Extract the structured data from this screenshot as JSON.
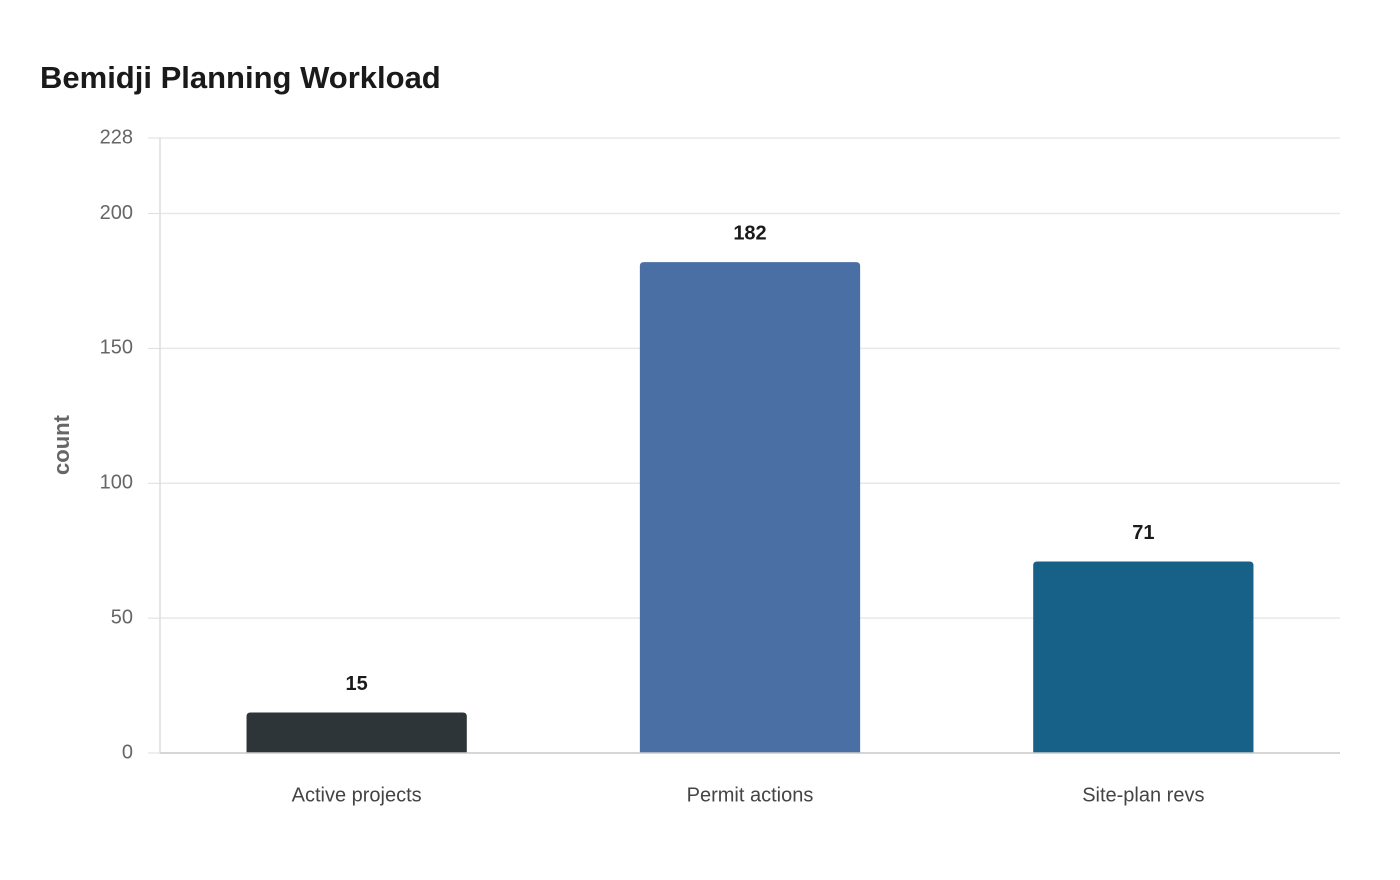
{
  "chart_data": {
    "type": "bar",
    "title": "Bemidji Planning Workload",
    "y_label": "count",
    "categories": [
      "Active projects",
      "Permit actions",
      "Site-plan revs"
    ],
    "values": [
      15,
      182,
      71
    ],
    "colors": [
      "#2d3538",
      "#4a6fa5",
      "#176087"
    ],
    "ylim": [
      0,
      228
    ],
    "yticks": [
      0,
      50,
      100,
      150,
      200,
      228
    ],
    "grid": true
  }
}
